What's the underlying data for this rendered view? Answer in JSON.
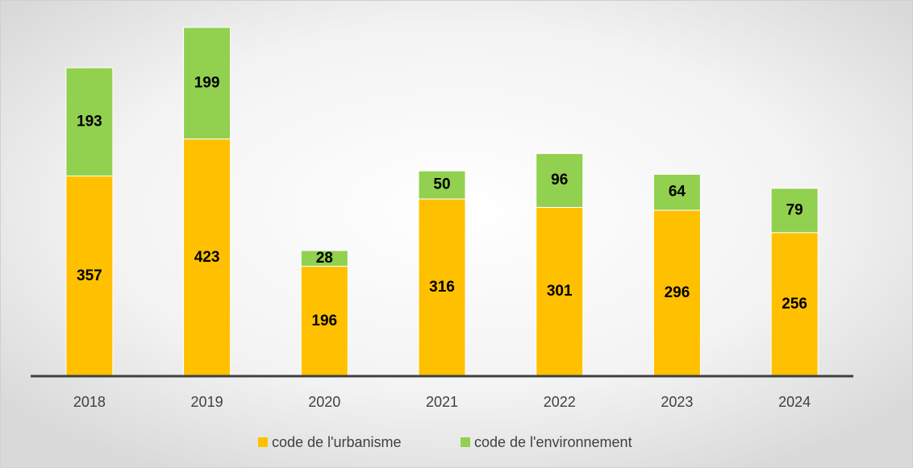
{
  "chart_data": {
    "type": "stacked_bar",
    "categories": [
      "2018",
      "2019",
      "2020",
      "2021",
      "2022",
      "2023",
      "2024"
    ],
    "series": [
      {
        "name": "code de l'urbanisme",
        "color": "#ffc000",
        "values": [
          357,
          423,
          196,
          316,
          301,
          296,
          256
        ]
      },
      {
        "name": "code de l'environnement",
        "color": "#92d050",
        "values": [
          193,
          199,
          28,
          50,
          96,
          64,
          79
        ]
      }
    ],
    "legend": "bottom"
  }
}
